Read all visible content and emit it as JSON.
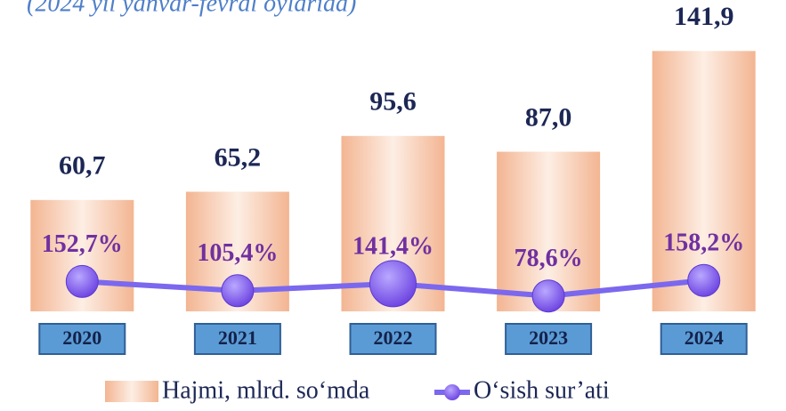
{
  "chart_data": {
    "type": "bar_line",
    "subtitle": "(2024 yil yanvar-fevral oylarida)",
    "categories": [
      "2020",
      "2021",
      "2022",
      "2023",
      "2024"
    ],
    "series": [
      {
        "name": "Hajmi, mlrd. so‘mda",
        "type": "bar",
        "color": "#f6c3a2",
        "values": [
          60.7,
          65.2,
          95.6,
          87.0,
          141.9
        ],
        "value_labels": [
          "60,7",
          "65,2",
          "95,6",
          "87,0",
          "141,9"
        ]
      },
      {
        "name": "O‘sish sur’ati",
        "type": "line",
        "axis": "y2",
        "color": "#7b68ee",
        "values": [
          152.7,
          105.4,
          141.4,
          78.6,
          158.2
        ],
        "value_labels": [
          "152,7%",
          "105,4%",
          "141,4%",
          "78,6%",
          "158,2%"
        ]
      }
    ],
    "ylim": [
      0,
      160
    ],
    "y2lim": [
      0,
      1500
    ]
  }
}
